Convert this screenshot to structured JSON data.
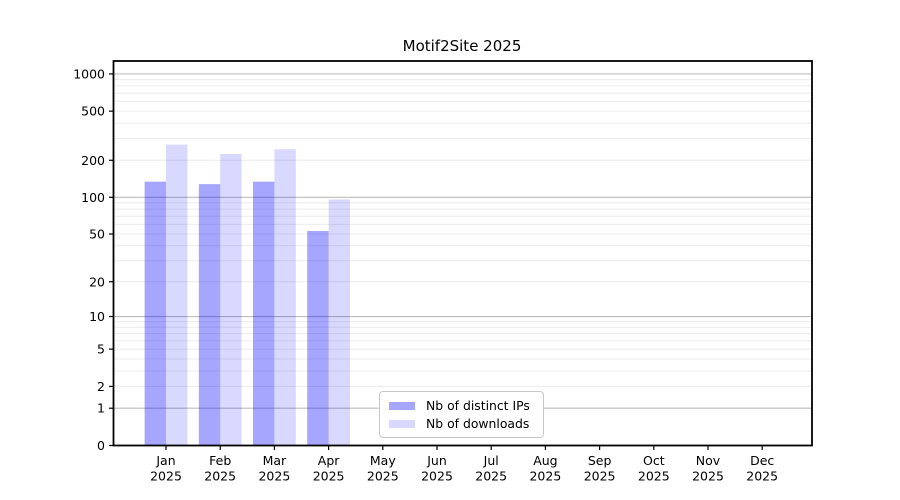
{
  "chart_data": {
    "type": "bar",
    "title": "Motif2Site 2025",
    "categories": [
      "Jan",
      "Feb",
      "Mar",
      "Apr",
      "May",
      "Jun",
      "Jul",
      "Aug",
      "Sep",
      "Oct",
      "Nov",
      "Dec"
    ],
    "category_year": "2025",
    "series": [
      {
        "name": "Nb of distinct IPs",
        "color": "rgba(0,0,255,0.35)",
        "values": [
          134,
          128,
          134,
          53,
          0,
          0,
          0,
          0,
          0,
          0,
          0,
          0
        ]
      },
      {
        "name": "Nb of downloads",
        "color": "rgba(0,0,255,0.15)",
        "values": [
          268,
          225,
          246,
          96,
          0,
          0,
          0,
          0,
          0,
          0,
          0,
          0
        ]
      }
    ],
    "y_scale": "log1p",
    "y_ticks": [
      0,
      1,
      2,
      5,
      10,
      20,
      50,
      100,
      200,
      500,
      1000
    ],
    "ylim": [
      0,
      1260
    ],
    "xlabel": "",
    "ylabel": "",
    "grid": {
      "on": true,
      "major_values": [
        1,
        10,
        100,
        1000
      ],
      "minor_values": [
        2,
        3,
        4,
        5,
        6,
        7,
        8,
        9,
        20,
        30,
        40,
        50,
        60,
        70,
        80,
        90,
        200,
        300,
        400,
        500,
        600,
        700,
        800,
        900
      ],
      "major_color": "#bdbdbd",
      "minor_color": "#ececec"
    },
    "axis_color": "#000000",
    "background_color": "#ffffff",
    "legend_position": "lower center"
  }
}
